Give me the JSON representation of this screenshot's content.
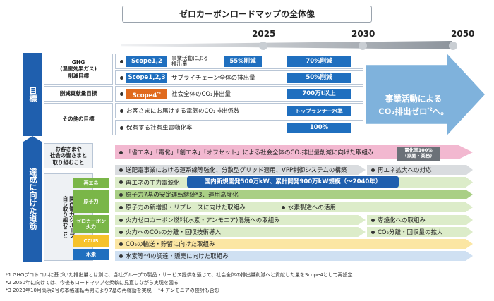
{
  "title": "ゼロカーボンロードマップの全体像",
  "years": [
    "2025",
    "2030",
    "2050"
  ],
  "left_labels": {
    "goals": "目標",
    "initiatives": "達成に向けた道筋"
  },
  "goal_rows": [
    {
      "label": "GHG\n(温室効果ガス)\n削減目標",
      "chip": "Scope1,2",
      "text": "事業活動による\n排出量",
      "v2025": "55%削減",
      "v2030": "70%削減"
    },
    {
      "label": "",
      "chip": "Scope1,2,3",
      "text": "サプライチェーン全体の排出量",
      "v2025": "",
      "v2030": "50%削減"
    },
    {
      "label": "削減貢献量目標",
      "chip": "Scope4",
      "chip_sup": "*1",
      "text": "社会全体のCO₂排出量",
      "v2025": "",
      "v2030": "700万t以上"
    },
    {
      "label": "その他の目標",
      "chip": "",
      "text": "お客さまにお届けする電気のCO₂排出係数",
      "v2025": "",
      "v2030": "トップランナー水準"
    },
    {
      "label": "",
      "chip": "",
      "text": "保有する社有車電動化率",
      "v2025": "",
      "v2030": "100%"
    }
  ],
  "big_arrow_text": "事業活動による\nCO₂排出ゼロ",
  "big_arrow_sup": "*2",
  "big_arrow_tail": "へ。",
  "society": {
    "label": "お客さまや\n社会の皆さまと\n取り組むこと",
    "text": "「省エネ」「電化」「創エネ」「オフセット」による社会全体のCO₂排出量削減に向けた取組み",
    "note": "電化率100%\n(家庭・業務)"
  },
  "group_label": "関西電力グループ\n自ら取り組むこと",
  "categories": [
    "再エネ",
    "原子力",
    "ゼロカーボン\n火力",
    "CCUS",
    "水素"
  ],
  "initiative_rows": [
    {
      "text": "送配電事業における運系線等強化、分散型グリッド適用、VPP制御システムの構築",
      "right": "再エネ拡大への対応"
    },
    {
      "text": "再エネの主力電源化",
      "highlight": "国内新規開発500万kW、累計開発900万kW規模（～2040年）"
    },
    {
      "text": "原子力7基の安定運転継続*3、運用高度化"
    },
    {
      "text": "原子力の新増設・リプレースに向けた取組み",
      "mid": "水素製造への活用"
    },
    {
      "text": "火力ゼロカーボン燃料(水素・アンモニア)混焼への取組み",
      "right": "専焼化への取組み"
    },
    {
      "text": "火力へのCO₂の分離・回収技術導入",
      "right": "CO₂分離・回収量の拡大"
    },
    {
      "text": "CO₂の輸送・貯留に向けた取組み"
    },
    {
      "text": "水素等*4の調達・販売に向けた取組み"
    }
  ],
  "footnotes": [
    "*1 GHGプロトコルに基づいた排出量とは別に、当社グループの製品・サービス提供を通じて、社会全体の排出量削減へと貢献した量をScope4として再設定",
    "*2 2050年に向けては、今後もロードマップを柔軟に見直しながら実現を図る",
    "*3 2023年10月高浜2号の本格運転再開により7基の再稼動を実現　 *4 アンモニアの検討も含む"
  ],
  "colors": {
    "blue": "#1f5fae",
    "arrow": "#7fb2dc",
    "chip_blue": "#1f6fbf",
    "chip_orange": "#e06a1e",
    "pink": "#f2b8d0",
    "green": "#7ab648",
    "gray": "#b9bdc2",
    "yellow": "#f6c22a"
  }
}
